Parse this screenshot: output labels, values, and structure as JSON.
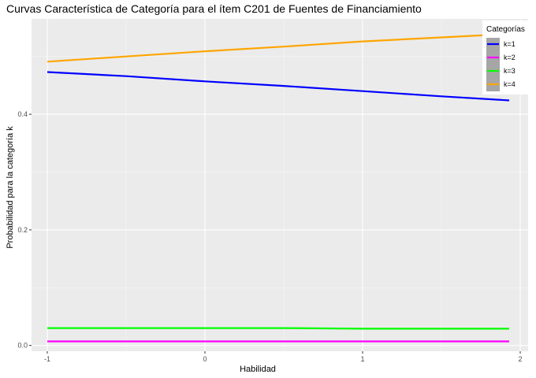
{
  "chart_data": {
    "type": "line",
    "title": "Curvas Característica de Categoría para el ítem C201 de Fuentes de Financiamiento",
    "xlabel": "Habilidad",
    "ylabel": "Probabilidad para la categoría k",
    "xlim": [
      -1.1,
      2.05
    ],
    "ylim": [
      -0.01,
      0.565
    ],
    "x_ticks": [
      -1,
      0,
      1,
      2
    ],
    "x_tick_labels": [
      "-1",
      "0",
      "1",
      "2"
    ],
    "y_ticks": [
      0.0,
      0.2,
      0.4
    ],
    "y_tick_labels": [
      "0.0",
      "0.2",
      "0.4"
    ],
    "x_minor_ticks": [
      -0.5,
      0.5,
      1.5
    ],
    "y_minor_ticks": [
      0.1,
      0.3,
      0.5
    ],
    "grid": true,
    "background": "#ebebeb",
    "legend": {
      "title": "Categorías",
      "position": "top-right"
    },
    "x": [
      -1.0,
      -0.5,
      0.0,
      0.5,
      1.0,
      1.5,
      1.93
    ],
    "series": [
      {
        "name": "k=1",
        "color": "#0000ff",
        "values": [
          0.473,
          0.466,
          0.457,
          0.449,
          0.44,
          0.431,
          0.424
        ]
      },
      {
        "name": "k=2",
        "color": "#ff00ff",
        "values": [
          0.007,
          0.007,
          0.007,
          0.007,
          0.007,
          0.007,
          0.007
        ]
      },
      {
        "name": "k=3",
        "color": "#00ff00",
        "values": [
          0.03,
          0.03,
          0.03,
          0.03,
          0.029,
          0.029,
          0.029
        ]
      },
      {
        "name": "k=4",
        "color": "#ffa500",
        "values": [
          0.491,
          0.5,
          0.509,
          0.517,
          0.526,
          0.533,
          0.539
        ]
      }
    ]
  }
}
